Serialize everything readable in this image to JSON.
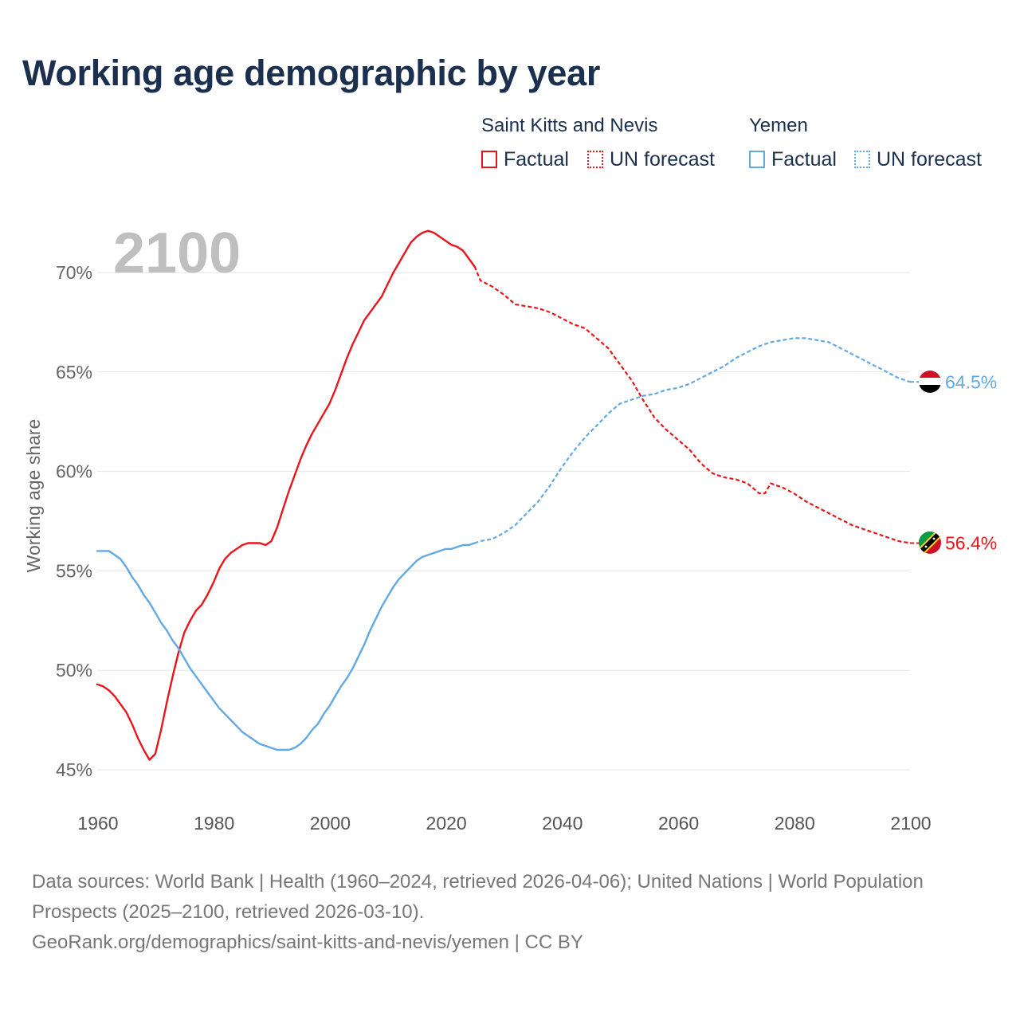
{
  "title": "Working age demographic by year",
  "legend": {
    "groups": [
      {
        "country": "Saint Kitts and Nevis",
        "factual_label": "Factual",
        "forecast_label": "UN forecast"
      },
      {
        "country": "Yemen",
        "factual_label": "Factual",
        "forecast_label": "UN forecast"
      }
    ]
  },
  "colors": {
    "saint_kitts": "#e8161b",
    "yemen": "#62a8e5",
    "grid": "#e6e6e6",
    "year_watermark": "#bfbfbf"
  },
  "footer": {
    "sources": "Data sources: World Bank | Health (1960–2024, retrieved 2026-04-06); United Nations | World Population Prospects (2025–2100, retrieved 2026-03-10).",
    "credit": "GeoRank.org/demographics/saint-kitts-and-nevis/yemen | CC BY"
  },
  "chart_data": {
    "type": "line",
    "year_watermark": "2100",
    "ylabel": "Working age share",
    "xlabel": "",
    "xlim": [
      1960,
      2100
    ],
    "ylim": [
      45,
      72
    ],
    "x_ticks": [
      1960,
      1980,
      2000,
      2020,
      2040,
      2060,
      2080,
      2100
    ],
    "y_ticks": [
      {
        "value": 45,
        "label": "45%"
      },
      {
        "value": 50,
        "label": "50%"
      },
      {
        "value": 55,
        "label": "55%"
      },
      {
        "value": 60,
        "label": "60%"
      },
      {
        "value": 65,
        "label": "65%"
      },
      {
        "value": 70,
        "label": "70%"
      }
    ],
    "forecast_start": 2025,
    "series": [
      {
        "name": "Saint Kitts and Nevis",
        "color_key": "saint_kitts",
        "end_label": "56.4%",
        "flag": "saint-kitts-and-nevis",
        "x": [
          1960,
          1961,
          1962,
          1963,
          1964,
          1965,
          1966,
          1967,
          1968,
          1969,
          1970,
          1971,
          1972,
          1973,
          1974,
          1975,
          1976,
          1977,
          1978,
          1979,
          1980,
          1981,
          1982,
          1983,
          1984,
          1985,
          1986,
          1987,
          1988,
          1989,
          1990,
          1991,
          1992,
          1993,
          1994,
          1995,
          1996,
          1997,
          1998,
          1999,
          2000,
          2001,
          2002,
          2003,
          2004,
          2005,
          2006,
          2007,
          2008,
          2009,
          2010,
          2011,
          2012,
          2013,
          2014,
          2015,
          2016,
          2017,
          2018,
          2019,
          2020,
          2021,
          2022,
          2023,
          2024,
          2025,
          2026,
          2028,
          2030,
          2032,
          2034,
          2036,
          2038,
          2040,
          2042,
          2044,
          2046,
          2048,
          2050,
          2052,
          2054,
          2056,
          2058,
          2060,
          2062,
          2064,
          2066,
          2068,
          2070,
          2072,
          2074,
          2075,
          2076,
          2078,
          2080,
          2082,
          2084,
          2086,
          2088,
          2090,
          2092,
          2094,
          2096,
          2098,
          2100
        ],
        "values": [
          49.3,
          49.2,
          49.0,
          48.7,
          48.3,
          47.9,
          47.3,
          46.6,
          46.0,
          45.5,
          45.8,
          47.0,
          48.4,
          49.7,
          50.9,
          51.9,
          52.5,
          53.0,
          53.3,
          53.8,
          54.4,
          55.1,
          55.6,
          55.9,
          56.1,
          56.3,
          56.4,
          56.4,
          56.4,
          56.3,
          56.5,
          57.2,
          58.1,
          59.0,
          59.8,
          60.6,
          61.3,
          61.9,
          62.4,
          62.9,
          63.4,
          64.1,
          64.9,
          65.7,
          66.4,
          67.0,
          67.6,
          68.0,
          68.4,
          68.8,
          69.4,
          70.0,
          70.5,
          71.0,
          71.5,
          71.8,
          72.0,
          72.1,
          72.0,
          71.8,
          71.6,
          71.4,
          71.3,
          71.1,
          70.7,
          70.3,
          69.6,
          69.3,
          68.9,
          68.4,
          68.3,
          68.2,
          68.0,
          67.7,
          67.4,
          67.2,
          66.7,
          66.2,
          65.4,
          64.6,
          63.6,
          62.7,
          62.1,
          61.6,
          61.1,
          60.4,
          59.9,
          59.7,
          59.6,
          59.4,
          58.9,
          58.9,
          59.4,
          59.2,
          58.9,
          58.5,
          58.2,
          57.9,
          57.6,
          57.3,
          57.1,
          56.9,
          56.7,
          56.5,
          56.4
        ]
      },
      {
        "name": "Yemen",
        "color_key": "yemen",
        "end_label": "64.5%",
        "flag": "yemen",
        "x": [
          1960,
          1962,
          1963,
          1964,
          1965,
          1966,
          1967,
          1968,
          1969,
          1970,
          1971,
          1972,
          1973,
          1974,
          1975,
          1976,
          1977,
          1978,
          1979,
          1980,
          1981,
          1982,
          1983,
          1984,
          1985,
          1986,
          1987,
          1988,
          1989,
          1990,
          1991,
          1992,
          1993,
          1994,
          1995,
          1996,
          1997,
          1998,
          1999,
          2000,
          2001,
          2002,
          2003,
          2004,
          2005,
          2006,
          2007,
          2008,
          2009,
          2010,
          2011,
          2012,
          2013,
          2014,
          2015,
          2016,
          2017,
          2018,
          2019,
          2020,
          2021,
          2022,
          2023,
          2024,
          2025,
          2026,
          2028,
          2030,
          2032,
          2034,
          2036,
          2038,
          2040,
          2042,
          2044,
          2046,
          2048,
          2050,
          2052,
          2054,
          2056,
          2058,
          2060,
          2062,
          2064,
          2066,
          2068,
          2070,
          2072,
          2074,
          2076,
          2078,
          2080,
          2082,
          2084,
          2086,
          2088,
          2090,
          2092,
          2094,
          2096,
          2098,
          2100
        ],
        "values": [
          56.0,
          56.0,
          55.8,
          55.6,
          55.2,
          54.7,
          54.3,
          53.8,
          53.4,
          52.9,
          52.4,
          52.0,
          51.5,
          51.1,
          50.6,
          50.1,
          49.7,
          49.3,
          48.9,
          48.5,
          48.1,
          47.8,
          47.5,
          47.2,
          46.9,
          46.7,
          46.5,
          46.3,
          46.2,
          46.1,
          46.0,
          46.0,
          46.0,
          46.1,
          46.3,
          46.6,
          47.0,
          47.3,
          47.8,
          48.2,
          48.7,
          49.2,
          49.6,
          50.1,
          50.7,
          51.3,
          52.0,
          52.6,
          53.2,
          53.7,
          54.2,
          54.6,
          54.9,
          55.2,
          55.5,
          55.7,
          55.8,
          55.9,
          56.0,
          56.1,
          56.1,
          56.2,
          56.3,
          56.3,
          56.4,
          56.5,
          56.6,
          56.9,
          57.3,
          57.9,
          58.5,
          59.3,
          60.2,
          61.0,
          61.7,
          62.3,
          62.9,
          63.4,
          63.6,
          63.8,
          63.9,
          64.1,
          64.2,
          64.4,
          64.7,
          65.0,
          65.3,
          65.7,
          66.0,
          66.3,
          66.5,
          66.6,
          66.7,
          66.7,
          66.6,
          66.5,
          66.2,
          65.9,
          65.6,
          65.3,
          65.0,
          64.7,
          64.5
        ]
      }
    ]
  }
}
